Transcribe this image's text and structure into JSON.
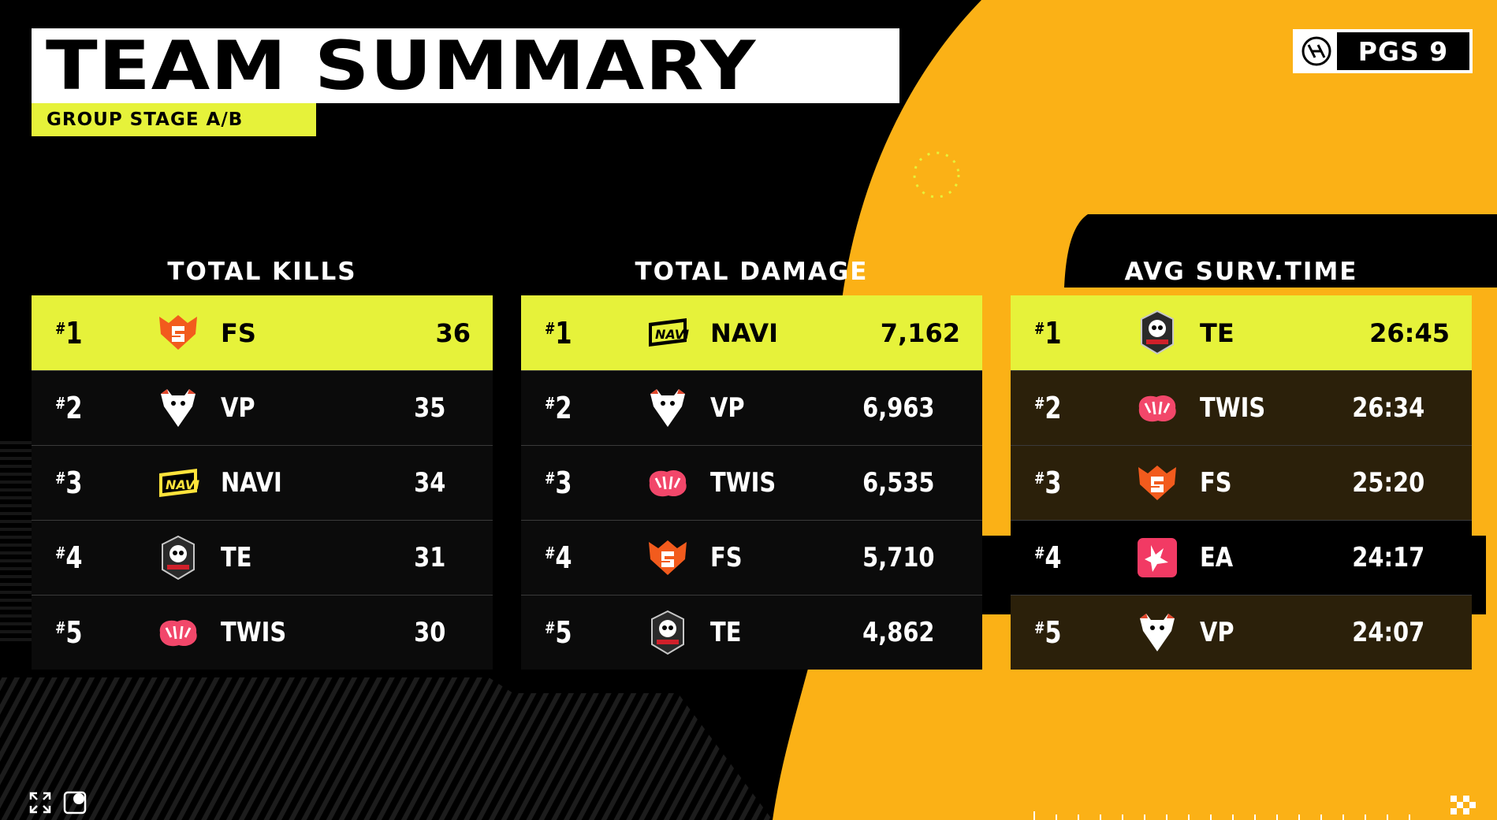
{
  "header": {
    "title": "TEAM SUMMARY",
    "subtitle": "GROUP STAGE A/B",
    "brand": "PGS 9"
  },
  "colors": {
    "accent": "#e6f23a",
    "orange": "#fbb116",
    "background": "#000000"
  },
  "panels": [
    {
      "title": "TOTAL KILLS",
      "rows": [
        {
          "rank_hash": "#",
          "rank_num": "1",
          "team": "FS",
          "value": "36",
          "logo": "fs-logo-icon"
        },
        {
          "rank_hash": "#",
          "rank_num": "2",
          "team": "VP",
          "value": "35",
          "logo": "vp-logo-icon"
        },
        {
          "rank_hash": "#",
          "rank_num": "3",
          "team": "NAVI",
          "value": "34",
          "logo": "navi-logo-icon"
        },
        {
          "rank_hash": "#",
          "rank_num": "4",
          "team": "TE",
          "value": "31",
          "logo": "te-logo-icon"
        },
        {
          "rank_hash": "#",
          "rank_num": "5",
          "team": "TWIS",
          "value": "30",
          "logo": "twis-logo-icon"
        }
      ]
    },
    {
      "title": "TOTAL DAMAGE",
      "rows": [
        {
          "rank_hash": "#",
          "rank_num": "1",
          "team": "NAVI",
          "value": "7,162",
          "logo": "navi-logo-icon"
        },
        {
          "rank_hash": "#",
          "rank_num": "2",
          "team": "VP",
          "value": "6,963",
          "logo": "vp-logo-icon"
        },
        {
          "rank_hash": "#",
          "rank_num": "3",
          "team": "TWIS",
          "value": "6,535",
          "logo": "twis-logo-icon"
        },
        {
          "rank_hash": "#",
          "rank_num": "4",
          "team": "FS",
          "value": "5,710",
          "logo": "fs-logo-icon"
        },
        {
          "rank_hash": "#",
          "rank_num": "5",
          "team": "TE",
          "value": "4,862",
          "logo": "te-logo-icon"
        }
      ]
    },
    {
      "title": "AVG SURV.TIME",
      "rows": [
        {
          "rank_hash": "#",
          "rank_num": "1",
          "team": "TE",
          "value": "26:45",
          "logo": "te-logo-icon"
        },
        {
          "rank_hash": "#",
          "rank_num": "2",
          "team": "TWIS",
          "value": "26:34",
          "logo": "twis-logo-icon"
        },
        {
          "rank_hash": "#",
          "rank_num": "3",
          "team": "FS",
          "value": "25:20",
          "logo": "fs-logo-icon"
        },
        {
          "rank_hash": "#",
          "rank_num": "4",
          "team": "EA",
          "value": "24:17",
          "logo": "ea-logo-icon"
        },
        {
          "rank_hash": "#",
          "rank_num": "5",
          "team": "VP",
          "value": "24:07",
          "logo": "vp-logo-icon"
        }
      ]
    }
  ]
}
